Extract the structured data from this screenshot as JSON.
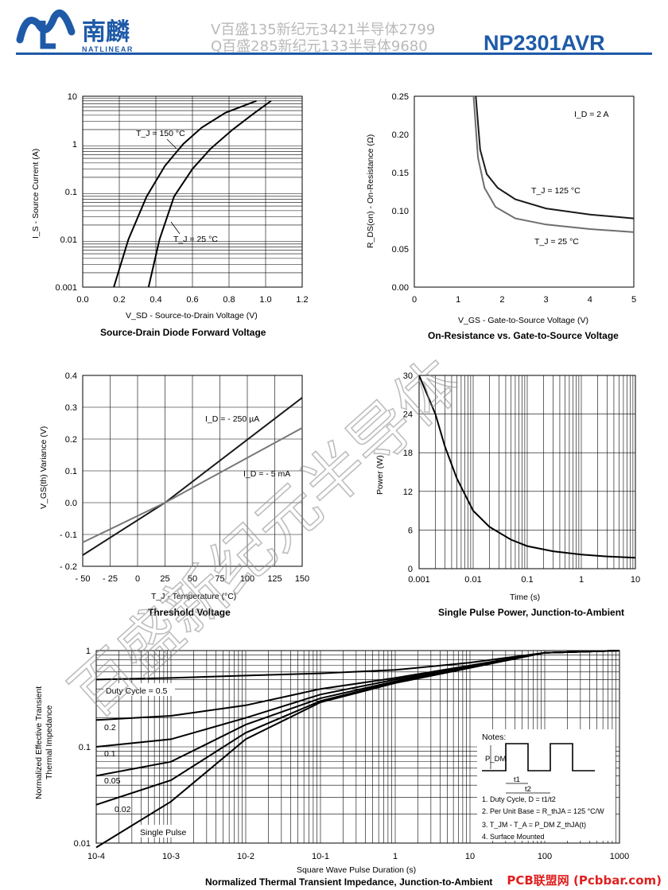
{
  "header": {
    "logo_cn": "南麟",
    "logo_en": "NATLINEAR",
    "watermark_line1": "V百盛135新纪元3421半导体2799",
    "watermark_line2": "Q百盛285新纪元133半导体9680",
    "part_number": "NP2301AVR"
  },
  "watermark_big": "百盛新纪元半导体",
  "footer": "PCB联盟网 (Pcbbar.com)",
  "charts": {
    "c1": {
      "caption": "Source-Drain Diode Forward Voltage",
      "ylabel": "I_S - Source Current (A)",
      "xlabel": "V_SD - Source-to-Drain Voltage (V)",
      "xticks": [
        "0.0",
        "0.2",
        "0.4",
        "0.6",
        "0.8",
        "1.0",
        "1.2"
      ],
      "yticks": [
        "10",
        "1",
        "0.1",
        "0.01",
        "0.001"
      ],
      "ann1": "T_J = 150 °C",
      "ann2": "T_J = 25 °C"
    },
    "c2": {
      "caption": "On-Resistance vs. Gate-to-Source Voltage",
      "ylabel": "R_DS(on) - On-Resistance (Ω)",
      "xlabel": "V_GS - Gate-to-Source Voltage (V)",
      "xticks": [
        "0",
        "1",
        "2",
        "3",
        "4",
        "5"
      ],
      "yticks": [
        "0.25",
        "0.20",
        "0.15",
        "0.10",
        "0.05",
        "0.00"
      ],
      "ann1": "I_D = 2 A",
      "ann2": "T_J = 125 °C",
      "ann3": "T_J = 25 °C"
    },
    "c3": {
      "caption": "Threshold Voltage",
      "ylabel": "V_GS(th) Variance (V)",
      "xlabel": "T_J - Temperature (°C)",
      "xticks": [
        "- 50",
        "- 25",
        "0",
        "25",
        "50",
        "75",
        "100",
        "125",
        "150"
      ],
      "yticks": [
        "0.4",
        "0.3",
        "0.2",
        "0.1",
        "0.0",
        "- 0.1",
        "- 0.2"
      ],
      "ann1": "I_D = - 250 µA",
      "ann2": "I_D = - 5 mA"
    },
    "c4": {
      "caption": "Single Pulse Power, Junction-to-Ambient",
      "ylabel": "Power (W)",
      "xlabel": "Time (s)",
      "xticks": [
        "0.001",
        "0.01",
        "0.1",
        "1",
        "10"
      ],
      "yticks": [
        "30",
        "24",
        "18",
        "12",
        "6",
        "0"
      ]
    },
    "c5": {
      "caption": "Normalized Thermal Transient Impedance, Junction-to-Ambient",
      "ylabel1": "Normalized Effective Transient",
      "ylabel2": "Thermal Impedance",
      "xlabel": "Square Wave Pulse Duration (s)",
      "xticks": [
        "10-4",
        "10-3",
        "10-2",
        "10-1",
        "1",
        "10",
        "100",
        "1000"
      ],
      "yticks": [
        "1",
        "0.1",
        "0.01"
      ],
      "labels": [
        "Duty Cycle = 0.5",
        "0.2",
        "0.1",
        "0.05",
        "0.02",
        "Single Pulse"
      ],
      "notes": {
        "title": "Notes:",
        "pdm": "P_DM",
        "t1": "t1",
        "t2": "t2",
        "n1": "1. Duty Cycle, D = t1/t2",
        "n2": "2. Per Unit Base = R_thJA = 125 °C/W",
        "n3": "3. T_JM - T_A = P_DM Z_thJA(t)",
        "n4": "4. Surface Mounted"
      }
    }
  },
  "chart_data": [
    {
      "type": "line",
      "title": "Source-Drain Diode Forward Voltage",
      "xlabel": "V_SD - Source-to-Drain Voltage (V)",
      "ylabel": "I_S - Source Current (A)",
      "xlim": [
        0,
        1.2
      ],
      "ylim": [
        0.001,
        10
      ],
      "yscale": "log",
      "series": [
        {
          "name": "T_J = 150 °C",
          "x": [
            0.17,
            0.25,
            0.35,
            0.45,
            0.55,
            0.65,
            0.78,
            0.95
          ],
          "y": [
            0.001,
            0.01,
            0.08,
            0.35,
            1,
            2.2,
            4.5,
            8
          ]
        },
        {
          "name": "T_J = 25 °C",
          "x": [
            0.36,
            0.42,
            0.5,
            0.6,
            0.7,
            0.82,
            0.93,
            1.03
          ],
          "y": [
            0.001,
            0.01,
            0.08,
            0.3,
            0.8,
            2,
            4.2,
            8
          ]
        }
      ]
    },
    {
      "type": "line",
      "title": "On-Resistance vs. Gate-to-Source Voltage",
      "xlabel": "V_GS - Gate-to-Source Voltage (V)",
      "ylabel": "R_DS(on) - On-Resistance (Ω)",
      "xlim": [
        0,
        5
      ],
      "ylim": [
        0,
        0.25
      ],
      "series": [
        {
          "name": "T_J = 125 °C",
          "x": [
            1.4,
            1.5,
            1.65,
            1.9,
            2.3,
            3,
            4,
            5
          ],
          "y": [
            0.25,
            0.18,
            0.148,
            0.13,
            0.115,
            0.103,
            0.095,
            0.09
          ]
        },
        {
          "name": "T_J = 25 °C",
          "x": [
            1.35,
            1.45,
            1.6,
            1.85,
            2.3,
            3,
            4,
            5
          ],
          "y": [
            0.25,
            0.17,
            0.13,
            0.105,
            0.09,
            0.082,
            0.076,
            0.072
          ]
        }
      ]
    },
    {
      "type": "line",
      "title": "Threshold Voltage",
      "xlabel": "T_J - Temperature (°C)",
      "ylabel": "V_GS(th) Variance (V)",
      "xlim": [
        -50,
        150
      ],
      "ylim": [
        -0.2,
        0.4
      ],
      "series": [
        {
          "name": "I_D = - 250 µA",
          "x": [
            -50,
            25,
            150
          ],
          "y": [
            -0.165,
            0,
            0.33
          ]
        },
        {
          "name": "I_D = - 5 mA",
          "x": [
            -50,
            25,
            150
          ],
          "y": [
            -0.125,
            0,
            0.235
          ]
        }
      ]
    },
    {
      "type": "line",
      "title": "Single Pulse Power, Junction-to-Ambient",
      "xlabel": "Time (s)",
      "ylabel": "Power (W)",
      "xlim": [
        0.001,
        10
      ],
      "ylim": [
        0,
        30
      ],
      "xscale": "log",
      "series": [
        {
          "name": "",
          "x": [
            0.001,
            0.002,
            0.003,
            0.005,
            0.01,
            0.02,
            0.05,
            0.1,
            0.3,
            1,
            3,
            10
          ],
          "y": [
            30,
            24,
            19,
            14,
            9,
            6.5,
            4.5,
            3.5,
            2.7,
            2.2,
            1.9,
            1.7
          ]
        }
      ]
    },
    {
      "type": "line",
      "title": "Normalized Thermal Transient Impedance, Junction-to-Ambient",
      "xlabel": "Square Wave Pulse Duration (s)",
      "ylabel": "Normalized Effective Transient Thermal Impedance",
      "xlim": [
        0.0001,
        1000
      ],
      "ylim": [
        0.01,
        1
      ],
      "xscale": "log",
      "yscale": "log",
      "series": [
        {
          "name": "Duty Cycle = 0.5",
          "x": [
            0.0001,
            0.001,
            0.01,
            0.1,
            1,
            10,
            100,
            1000
          ],
          "y": [
            0.5,
            0.52,
            0.55,
            0.58,
            0.63,
            0.75,
            0.95,
            1
          ]
        },
        {
          "name": "0.2",
          "x": [
            0.0001,
            0.001,
            0.01,
            0.1,
            1,
            10,
            100,
            1000
          ],
          "y": [
            0.19,
            0.21,
            0.27,
            0.4,
            0.52,
            0.7,
            0.95,
            1
          ]
        },
        {
          "name": "0.1",
          "x": [
            0.0001,
            0.001,
            0.01,
            0.1,
            1,
            10,
            100,
            1000
          ],
          "y": [
            0.1,
            0.12,
            0.2,
            0.35,
            0.5,
            0.68,
            0.95,
            1
          ]
        },
        {
          "name": "0.05",
          "x": [
            0.0001,
            0.001,
            0.01,
            0.1,
            1,
            10,
            100,
            1000
          ],
          "y": [
            0.05,
            0.07,
            0.17,
            0.32,
            0.48,
            0.68,
            0.95,
            1
          ]
        },
        {
          "name": "0.02",
          "x": [
            0.0001,
            0.001,
            0.01,
            0.1,
            1,
            10,
            100,
            1000
          ],
          "y": [
            0.025,
            0.045,
            0.14,
            0.3,
            0.47,
            0.67,
            0.95,
            1
          ]
        },
        {
          "name": "Single Pulse",
          "x": [
            0.0001,
            0.001,
            0.01,
            0.1,
            1,
            10,
            100,
            1000
          ],
          "y": [
            0.009,
            0.027,
            0.12,
            0.29,
            0.46,
            0.66,
            0.95,
            1
          ]
        }
      ]
    }
  ]
}
